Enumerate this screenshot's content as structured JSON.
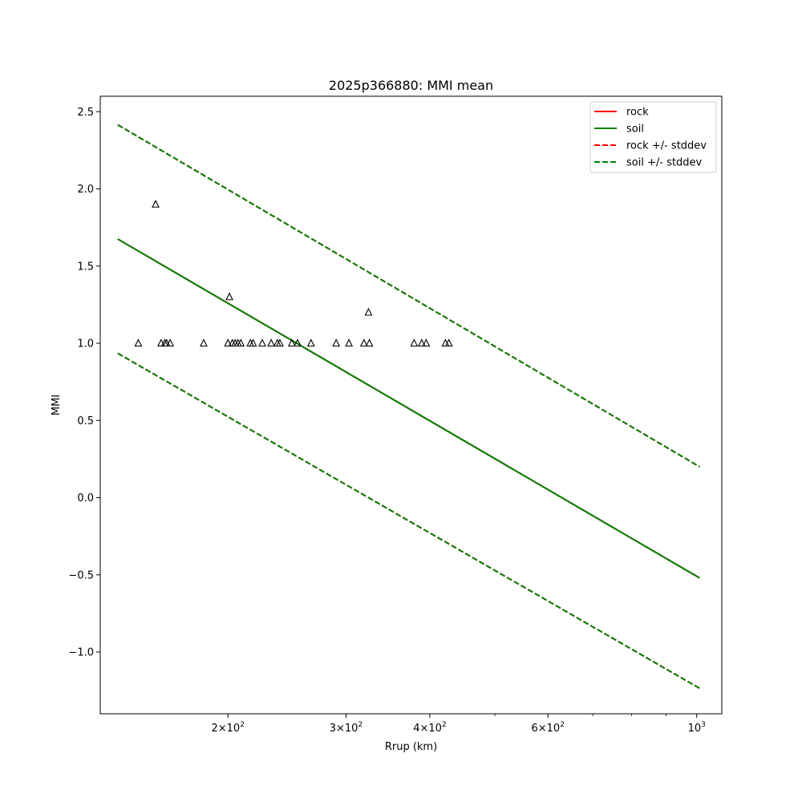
{
  "chart_data": {
    "type": "line",
    "title": "2025p366880: MMI mean",
    "xlabel": "Rrup (km)",
    "ylabel": "MMI",
    "xscale": "log",
    "xlim": [
      129,
      1090
    ],
    "ylim": [
      -1.4,
      2.6
    ],
    "xticks": [
      {
        "value": 200,
        "mantissa": "2",
        "exp": "2"
      },
      {
        "value": 300,
        "mantissa": "3",
        "exp": "2"
      },
      {
        "value": 400,
        "mantissa": "4",
        "exp": "2"
      },
      {
        "value": 600,
        "mantissa": "6",
        "exp": "2"
      },
      {
        "value": 1000,
        "mantissa": "",
        "exp": "3"
      }
    ],
    "xminor": [
      500,
      700,
      800,
      900
    ],
    "yticks": [
      {
        "value": 2.5,
        "label": "2.5"
      },
      {
        "value": 2.0,
        "label": "2.0"
      },
      {
        "value": 1.5,
        "label": "1.5"
      },
      {
        "value": 1.0,
        "label": "1.0"
      },
      {
        "value": 0.5,
        "label": "0.5"
      },
      {
        "value": 0.0,
        "label": "0.0"
      },
      {
        "value": -0.5,
        "label": "−0.5"
      },
      {
        "value": -1.0,
        "label": "−1.0"
      }
    ],
    "grid": false,
    "legend_position": "upper right",
    "series": [
      {
        "name": "rock",
        "style": "solid",
        "color": "#ff0000",
        "x": [
          137,
          1010
        ],
        "y": [
          1.675,
          -0.52
        ]
      },
      {
        "name": "soil",
        "style": "solid",
        "color": "#008000",
        "x": [
          137,
          1010
        ],
        "y": [
          1.675,
          -0.52
        ]
      },
      {
        "name": "rock +/- stddev",
        "style": "dashed",
        "color": "#ff0000",
        "x": [
          137,
          1010
        ],
        "y": [
          2.415,
          0.2
        ],
        "y2": [
          0.935,
          -1.235
        ]
      },
      {
        "name": "soil +/- stddev",
        "style": "dashed",
        "color": "#008000",
        "x": [
          137,
          1010
        ],
        "y": [
          2.415,
          0.2
        ],
        "y2": [
          0.935,
          -1.235
        ]
      }
    ],
    "observations": {
      "marker": "triangle",
      "points": [
        [
          147,
          1.0
        ],
        [
          156,
          1.9
        ],
        [
          159,
          1.0
        ],
        [
          161,
          1.0
        ],
        [
          162,
          1.0
        ],
        [
          164,
          1.0
        ],
        [
          184,
          1.0
        ],
        [
          200,
          1.0
        ],
        [
          201,
          1.3
        ],
        [
          203,
          1.0
        ],
        [
          205,
          1.0
        ],
        [
          207,
          1.0
        ],
        [
          209,
          1.0
        ],
        [
          216,
          1.0
        ],
        [
          218,
          1.0
        ],
        [
          225,
          1.0
        ],
        [
          232,
          1.0
        ],
        [
          237,
          1.0
        ],
        [
          239,
          1.0
        ],
        [
          249,
          1.0
        ],
        [
          254,
          1.0
        ],
        [
          266,
          1.0
        ],
        [
          290,
          1.0
        ],
        [
          303,
          1.0
        ],
        [
          319,
          1.0
        ],
        [
          324,
          1.2
        ],
        [
          325,
          1.0
        ],
        [
          379,
          1.0
        ],
        [
          389,
          1.0
        ],
        [
          395,
          1.0
        ],
        [
          422,
          1.0
        ],
        [
          427,
          1.0
        ]
      ]
    }
  }
}
